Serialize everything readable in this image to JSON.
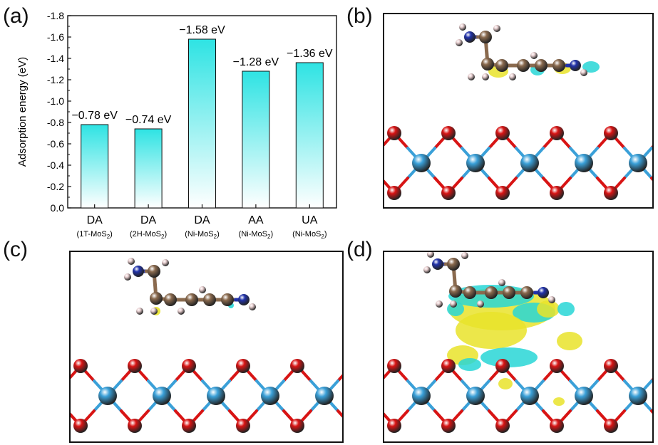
{
  "panels": {
    "a": "(a)",
    "b": "(b)",
    "c": "(c)",
    "d": "(d)"
  },
  "chart_data": {
    "type": "bar",
    "categories": [
      "DA",
      "DA",
      "DA",
      "AA",
      "UA"
    ],
    "sublabels": [
      "1T-MoS",
      "2H-MoS",
      "Ni-MoS",
      "Ni-MoS",
      "Ni-MoS"
    ],
    "sublabel_subscript": "2",
    "values": [
      -0.78,
      -0.74,
      -1.58,
      -1.28,
      -1.36
    ],
    "data_labels": [
      "−0.78 eV",
      "−0.74 eV",
      "−1.58 eV",
      "−1.28 eV",
      "−1.36 eV"
    ],
    "ylabel": "Adsorption energy (eV)",
    "ylim": [
      0.0,
      -1.8
    ],
    "yticks": [
      "0.0",
      "-0.2",
      "-0.4",
      "-0.6",
      "-0.8",
      "-1.0",
      "-1.2",
      "-1.4",
      "-1.6",
      "-1.8"
    ],
    "axis_inverted": true,
    "grid": false,
    "colors": {
      "bar_top": "#2ee3e3",
      "bar_bottom": "#ffffff",
      "bar_edge": "#111111"
    }
  },
  "structures": {
    "colors": {
      "sulfur": "#d81414",
      "molybdenum": "#3aa0d8",
      "carbon": "#8a6a4e",
      "nitrogen": "#2233aa",
      "hydrogen": "#e8cfd0",
      "isosurface_yellow": "#e9e32a",
      "isosurface_cyan": "#28d6d6"
    }
  }
}
